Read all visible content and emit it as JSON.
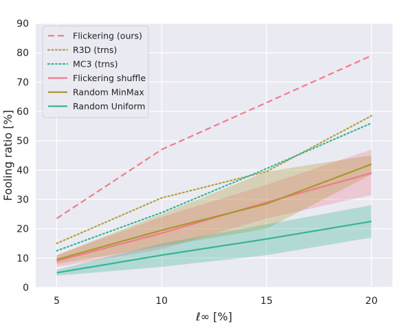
{
  "chart_data": {
    "type": "line",
    "xlabel": "ℓ∞ [%]",
    "ylabel": "Fooling ratio [%]",
    "x": [
      5,
      10,
      15,
      20
    ],
    "xticks": [
      "5",
      "10",
      "15",
      "20"
    ],
    "yticks": [
      "0",
      "10",
      "20",
      "30",
      "40",
      "50",
      "60",
      "70",
      "80",
      "90"
    ],
    "xlim": [
      4,
      21
    ],
    "ylim": [
      0,
      90
    ],
    "grid": true,
    "legend_position": "top-left",
    "series": [
      {
        "name": "Flickering (ours)",
        "color": "#f37989",
        "style": "dashed",
        "values": [
          23.5,
          47,
          63,
          79
        ]
      },
      {
        "name": "R3D (trns)",
        "color": "#b2a03e",
        "style": "dotted",
        "values": [
          15,
          30.5,
          39.5,
          58.5
        ]
      },
      {
        "name": "MC3 (trns)",
        "color": "#36b393",
        "style": "dotted",
        "values": [
          12.5,
          25.5,
          40.5,
          56
        ]
      },
      {
        "name": "Flickering shuffle",
        "color": "#f37989",
        "style": "solid",
        "values": [
          9,
          18.5,
          29,
          39
        ],
        "band_lower": [
          7,
          13,
          23.5,
          31.5
        ],
        "band_upper": [
          11,
          24,
          35,
          47
        ]
      },
      {
        "name": "Random MinMax",
        "color": "#a9962e",
        "style": "solid",
        "values": [
          9.5,
          19.5,
          28.5,
          42
        ],
        "band_lower": [
          8,
          14,
          20,
          38.5
        ],
        "band_upper": [
          11,
          25,
          39.5,
          45
        ]
      },
      {
        "name": "Random Uniform",
        "color": "#36b393",
        "style": "solid",
        "values": [
          5,
          11,
          16.5,
          22.5
        ],
        "band_lower": [
          4,
          7,
          11,
          17
        ],
        "band_upper": [
          6,
          15,
          21.5,
          28
        ]
      }
    ]
  }
}
